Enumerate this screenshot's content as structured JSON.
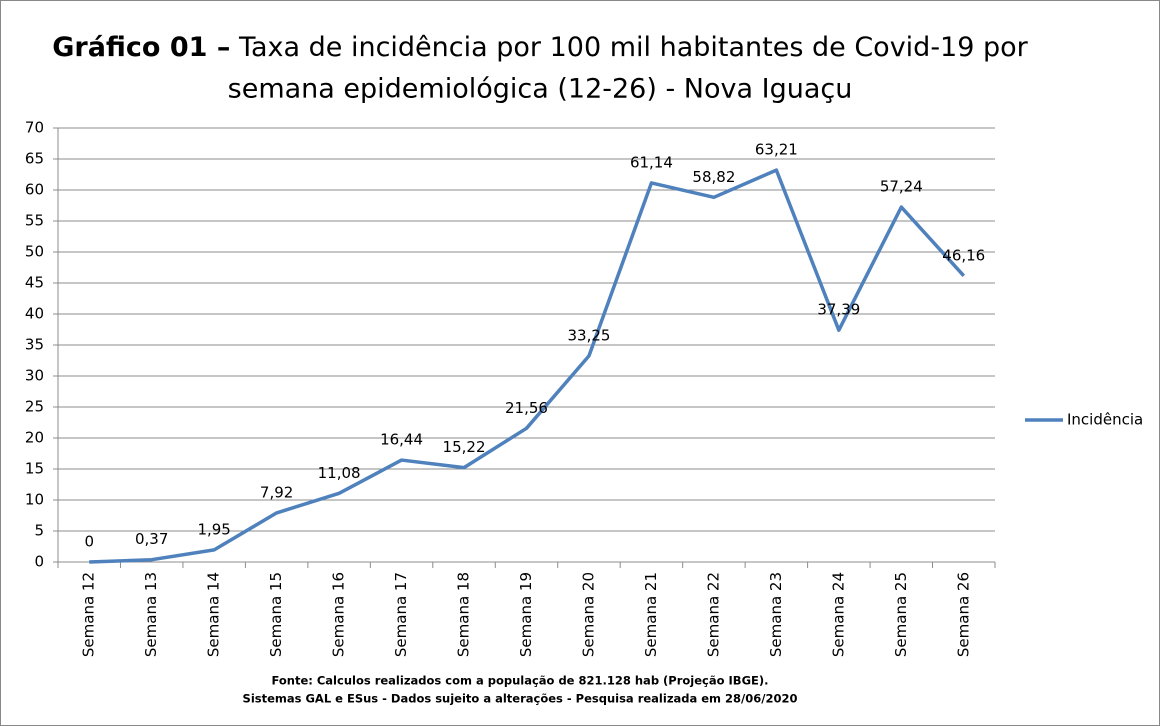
{
  "chart_data": {
    "type": "line",
    "title_prefix": "Gráfico 01 –",
    "title": [
      "Taxa de incidência por 100 mil habitantes de Covid-19 por",
      "semana epidemiológica (12-26) - Nova Iguaçu"
    ],
    "categories": [
      "Semana 12",
      "Semana 13",
      "Semana 14",
      "Semana 15",
      "Semana 16",
      "Semana 17",
      "Semana 18",
      "Semana 19",
      "Semana 20",
      "Semana 21",
      "Semana 22",
      "Semana 23",
      "Semana 24",
      "Semana 25",
      "Semana 26"
    ],
    "series": [
      {
        "name": "Incidência",
        "color": "#4f81bd",
        "values": [
          0,
          0.37,
          1.95,
          7.92,
          11.08,
          16.44,
          15.22,
          21.56,
          33.25,
          61.14,
          58.82,
          63.21,
          37.39,
          57.24,
          46.16
        ],
        "value_labels": [
          "0",
          "0,37",
          "1,95",
          "7,92",
          "11,08",
          "16,44",
          "15,22",
          "21,56",
          "33,25",
          "61,14",
          "58,82",
          "63,21",
          "37,39",
          "57,24",
          "46,16"
        ]
      }
    ],
    "ylim": [
      0,
      70
    ],
    "yticks": [
      0,
      5,
      10,
      15,
      20,
      25,
      30,
      35,
      40,
      45,
      50,
      55,
      60,
      65,
      70
    ],
    "grid": true,
    "legend": "right",
    "footnote": [
      "Fonte: Calculos realizados com a população de 821.128 hab (Projeção IBGE).",
      "Sistemas GAL e ESus - Dados sujeito a alterações - Pesquisa realizada em  28/06/2020"
    ]
  }
}
